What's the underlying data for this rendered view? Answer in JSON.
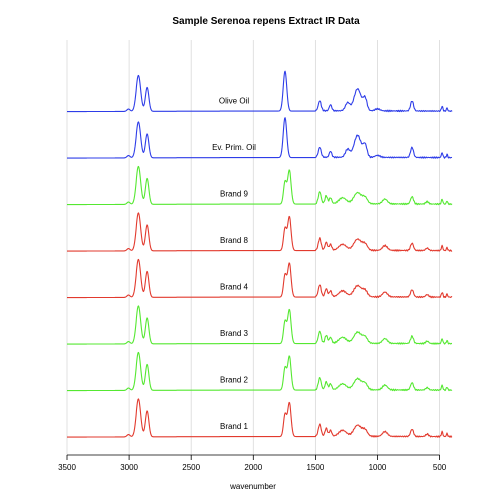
{
  "chart_data": {
    "type": "line",
    "title": "Sample Serenoa repens Extract IR Data",
    "xlabel": "wavenumber",
    "ylabel": "",
    "xlim": [
      3500,
      400
    ],
    "x_reversed": true,
    "xticks": [
      3500,
      3000,
      2500,
      2000,
      1500,
      1000,
      500
    ],
    "grid_vertical": true,
    "colors": {
      "oil": "#2e3de8",
      "green": "#55e831",
      "red": "#e23a2e",
      "grid": "#d9d9d9"
    },
    "series": [
      {
        "name": "Olive Oil",
        "color_key": "oil",
        "type_key": "oil",
        "offset": 7,
        "height": 0.8
      },
      {
        "name": "Ev. Prim. Oil",
        "color_key": "oil",
        "type_key": "oil",
        "offset": 6,
        "height": 0.8
      },
      {
        "name": "Brand 9",
        "color_key": "green",
        "type_key": "brand",
        "offset": 5,
        "height": 0.8
      },
      {
        "name": "Brand 8",
        "color_key": "red",
        "type_key": "brand",
        "offset": 4,
        "height": 0.8
      },
      {
        "name": "Brand 4",
        "color_key": "red",
        "type_key": "brand",
        "offset": 3,
        "height": 0.8
      },
      {
        "name": "Brand 3",
        "color_key": "green",
        "type_key": "brand",
        "offset": 2,
        "height": 0.8
      },
      {
        "name": "Brand 2",
        "color_key": "green",
        "type_key": "brand",
        "offset": 1,
        "height": 0.8
      },
      {
        "name": "Brand 1",
        "color_key": "red",
        "type_key": "brand",
        "offset": 0,
        "height": 0.8
      }
    ],
    "peak_profiles": {
      "oil": [
        {
          "x": 2925,
          "h": 0.9,
          "w": 18
        },
        {
          "x": 2855,
          "h": 0.6,
          "w": 14
        },
        {
          "x": 3005,
          "h": 0.06,
          "w": 12
        },
        {
          "x": 1745,
          "h": 1.0,
          "w": 14
        },
        {
          "x": 1465,
          "h": 0.25,
          "w": 12
        },
        {
          "x": 1378,
          "h": 0.15,
          "w": 10
        },
        {
          "x": 1240,
          "h": 0.2,
          "w": 18
        },
        {
          "x": 1160,
          "h": 0.55,
          "w": 28
        },
        {
          "x": 1100,
          "h": 0.3,
          "w": 16
        },
        {
          "x": 722,
          "h": 0.25,
          "w": 12
        },
        {
          "x": 1000,
          "h": 0.05,
          "w": 20
        },
        {
          "x": 480,
          "h": 0.12,
          "w": 6
        },
        {
          "x": 440,
          "h": 0.08,
          "w": 5
        }
      ],
      "brand": [
        {
          "x": 2925,
          "h": 0.95,
          "w": 18
        },
        {
          "x": 2855,
          "h": 0.65,
          "w": 14
        },
        {
          "x": 3005,
          "h": 0.06,
          "w": 12
        },
        {
          "x": 1745,
          "h": 0.55,
          "w": 12
        },
        {
          "x": 1710,
          "h": 0.85,
          "w": 14
        },
        {
          "x": 1465,
          "h": 0.3,
          "w": 12
        },
        {
          "x": 1412,
          "h": 0.2,
          "w": 10
        },
        {
          "x": 1378,
          "h": 0.15,
          "w": 10
        },
        {
          "x": 1280,
          "h": 0.15,
          "w": 30
        },
        {
          "x": 1160,
          "h": 0.28,
          "w": 30
        },
        {
          "x": 1100,
          "h": 0.15,
          "w": 20
        },
        {
          "x": 940,
          "h": 0.12,
          "w": 20
        },
        {
          "x": 722,
          "h": 0.18,
          "w": 12
        },
        {
          "x": 600,
          "h": 0.06,
          "w": 12
        },
        {
          "x": 480,
          "h": 0.12,
          "w": 6
        },
        {
          "x": 440,
          "h": 0.08,
          "w": 5
        }
      ]
    }
  }
}
